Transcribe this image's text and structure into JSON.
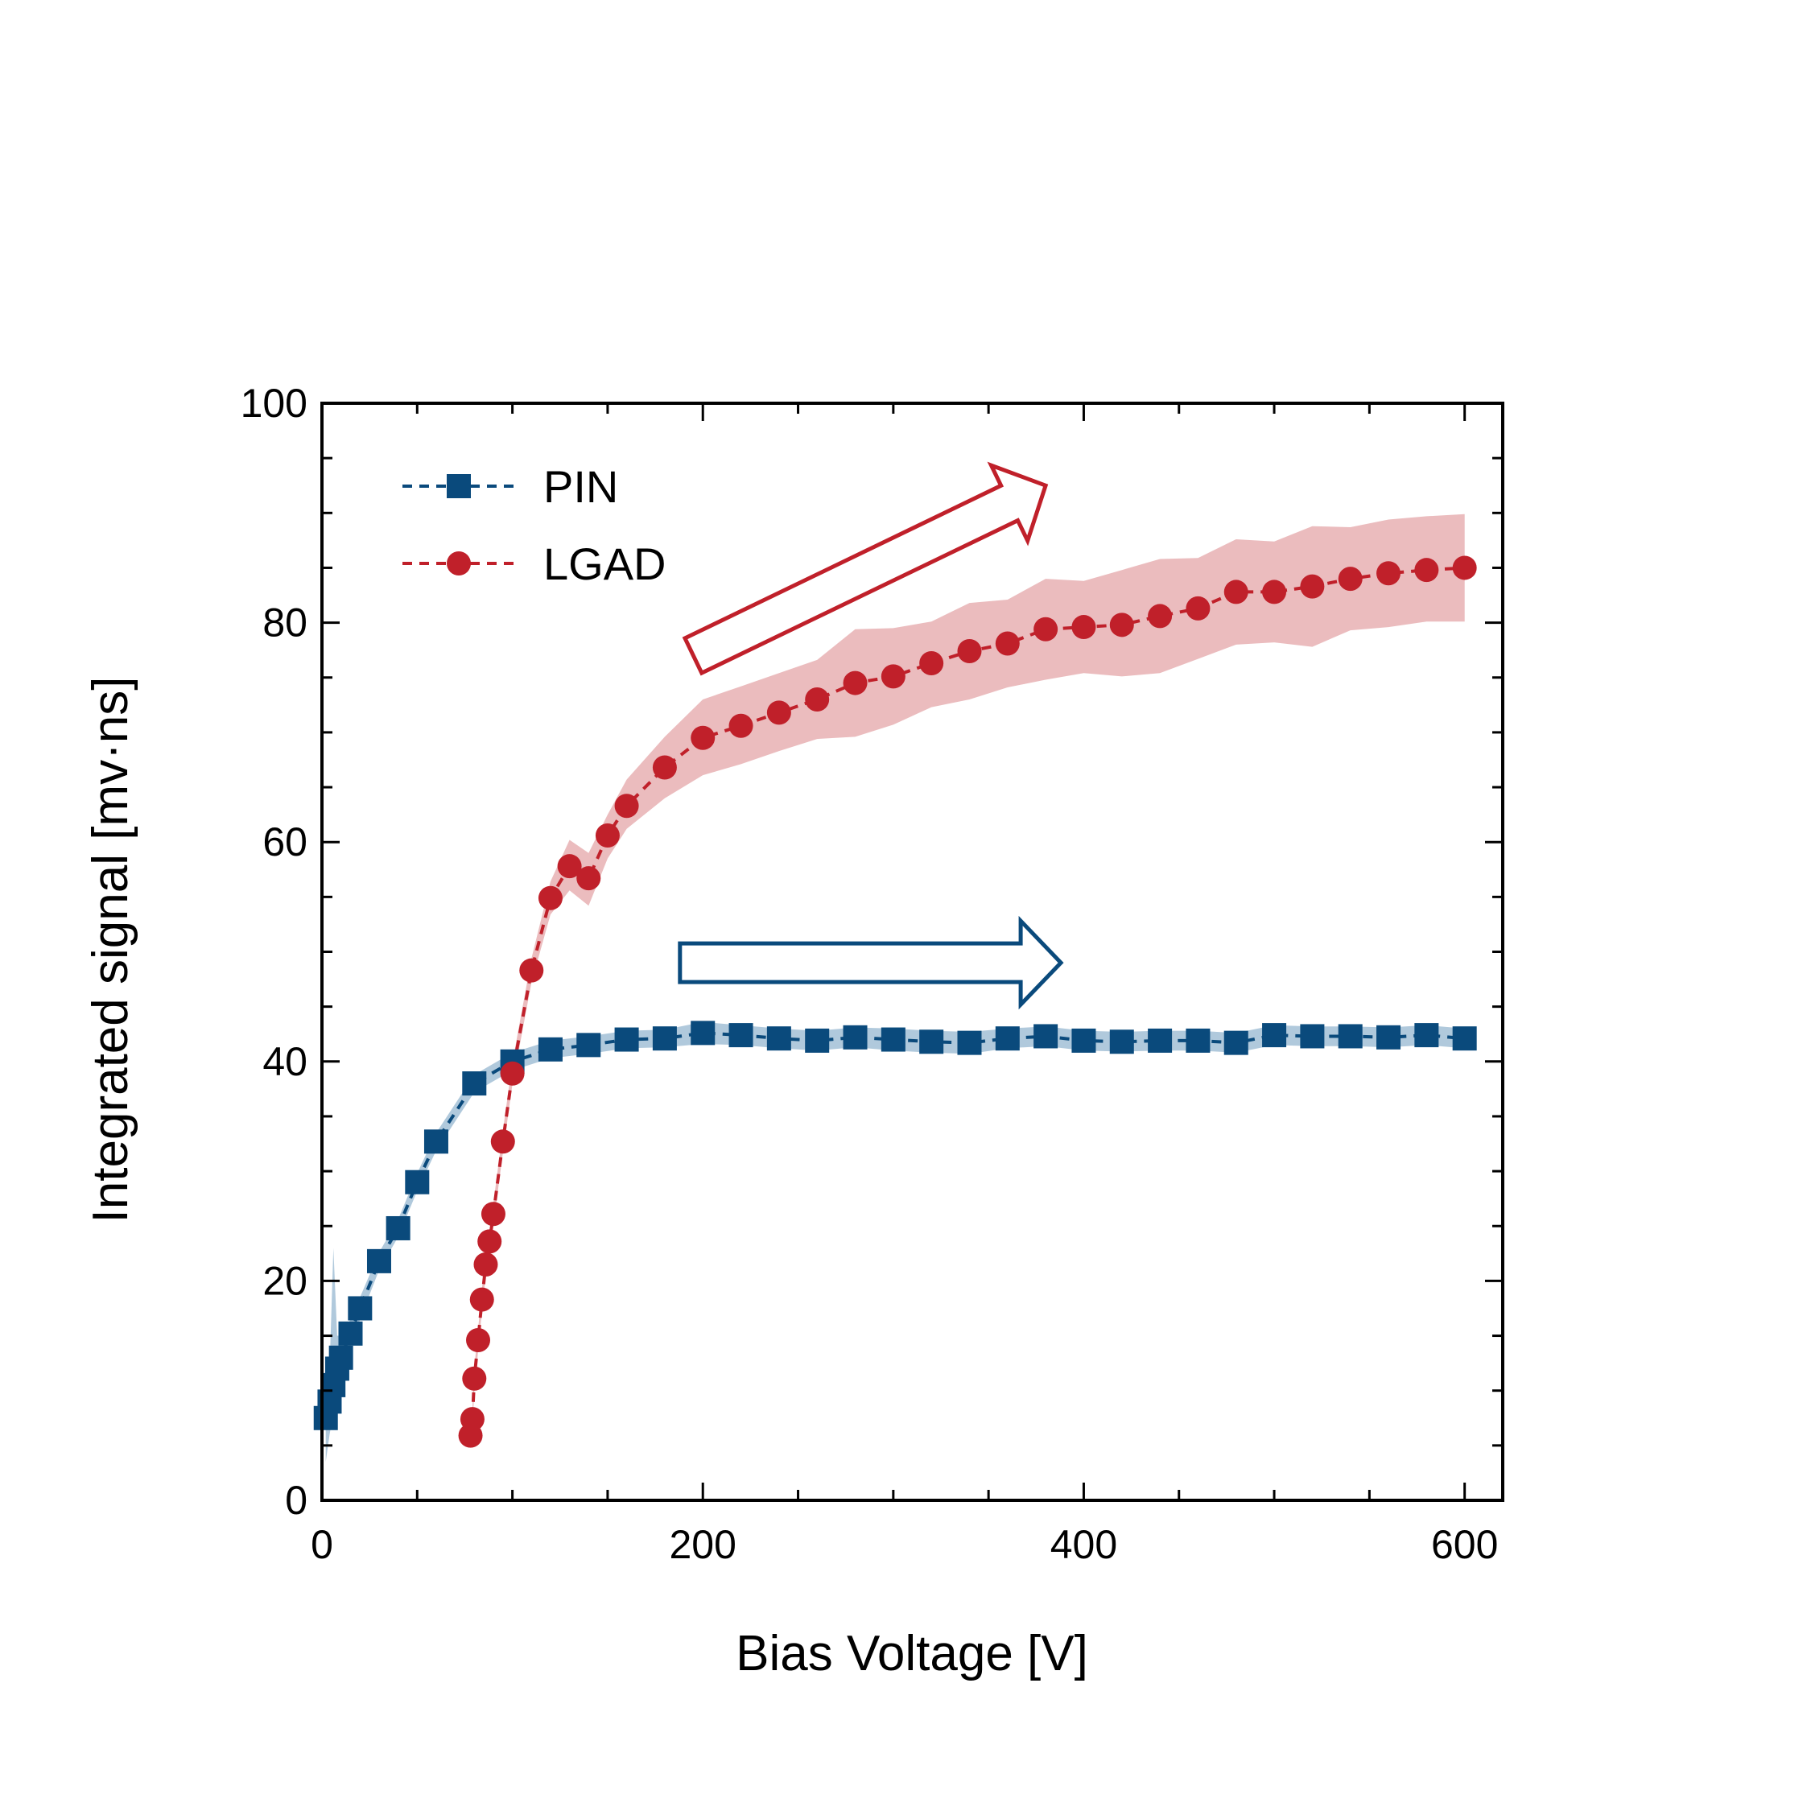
{
  "chart_data": {
    "type": "line",
    "xlabel": "Bias Voltage [V]",
    "ylabel": "Integrated signal [mv·ns]",
    "xlim": [
      0,
      620
    ],
    "ylim": [
      0,
      100
    ],
    "xticks": [
      0,
      200,
      400,
      600
    ],
    "yticks": [
      0,
      20,
      40,
      60,
      80,
      100
    ],
    "legend_position": "top-left",
    "grid": false,
    "series": [
      {
        "name": "PIN",
        "color": "#0a4a7c",
        "band_color": "#6f9cc0",
        "marker": "square",
        "points": [
          {
            "x": 2,
            "y": 7.5,
            "lo": 3.5,
            "hi": 11.5
          },
          {
            "x": 4,
            "y": 9,
            "lo": 6,
            "hi": 12
          },
          {
            "x": 6,
            "y": 10.5,
            "lo": 8,
            "hi": 23
          },
          {
            "x": 8,
            "y": 12,
            "lo": 9,
            "hi": 15
          },
          {
            "x": 10,
            "y": 13,
            "lo": 11,
            "hi": 15
          },
          {
            "x": 15,
            "y": 15.2,
            "lo": 14,
            "hi": 16.5
          },
          {
            "x": 20,
            "y": 17.5,
            "lo": 16.5,
            "hi": 18.5
          },
          {
            "x": 30,
            "y": 21.8,
            "lo": 21,
            "hi": 22.6
          },
          {
            "x": 40,
            "y": 24.8,
            "lo": 24,
            "hi": 25.6
          },
          {
            "x": 50,
            "y": 29,
            "lo": 28.2,
            "hi": 29.8
          },
          {
            "x": 60,
            "y": 32.7,
            "lo": 31.9,
            "hi": 33.5
          },
          {
            "x": 80,
            "y": 38,
            "lo": 37.2,
            "hi": 38.8
          },
          {
            "x": 100,
            "y": 40,
            "lo": 39.2,
            "hi": 40.8
          },
          {
            "x": 120,
            "y": 41.1,
            "lo": 40.3,
            "hi": 41.9
          },
          {
            "x": 140,
            "y": 41.5,
            "lo": 40.7,
            "hi": 42.3
          },
          {
            "x": 160,
            "y": 42,
            "lo": 41.2,
            "hi": 42.8
          },
          {
            "x": 180,
            "y": 42.1,
            "lo": 41.3,
            "hi": 42.9
          },
          {
            "x": 200,
            "y": 42.6,
            "lo": 41.6,
            "hi": 43.6
          },
          {
            "x": 220,
            "y": 42.4,
            "lo": 41.5,
            "hi": 43.3
          },
          {
            "x": 240,
            "y": 42.1,
            "lo": 41.2,
            "hi": 43
          },
          {
            "x": 260,
            "y": 41.9,
            "lo": 41,
            "hi": 42.8
          },
          {
            "x": 280,
            "y": 42.2,
            "lo": 41.3,
            "hi": 43.1
          },
          {
            "x": 300,
            "y": 42,
            "lo": 41,
            "hi": 43
          },
          {
            "x": 320,
            "y": 41.8,
            "lo": 40.8,
            "hi": 42.8
          },
          {
            "x": 340,
            "y": 41.7,
            "lo": 40.7,
            "hi": 42.7
          },
          {
            "x": 360,
            "y": 42.1,
            "lo": 41.2,
            "hi": 43
          },
          {
            "x": 380,
            "y": 42.3,
            "lo": 41.4,
            "hi": 43.2
          },
          {
            "x": 400,
            "y": 41.9,
            "lo": 41,
            "hi": 42.8
          },
          {
            "x": 420,
            "y": 41.8,
            "lo": 40.9,
            "hi": 42.7
          },
          {
            "x": 440,
            "y": 41.9,
            "lo": 41,
            "hi": 42.8
          },
          {
            "x": 460,
            "y": 41.9,
            "lo": 41,
            "hi": 42.8
          },
          {
            "x": 480,
            "y": 41.7,
            "lo": 40.8,
            "hi": 42.6
          },
          {
            "x": 500,
            "y": 42.4,
            "lo": 41.5,
            "hi": 43.3
          },
          {
            "x": 520,
            "y": 42.3,
            "lo": 41.4,
            "hi": 43.2
          },
          {
            "x": 540,
            "y": 42.3,
            "lo": 41.4,
            "hi": 43.2
          },
          {
            "x": 560,
            "y": 42.2,
            "lo": 41.3,
            "hi": 43.1
          },
          {
            "x": 580,
            "y": 42.4,
            "lo": 41.5,
            "hi": 43.3
          },
          {
            "x": 600,
            "y": 42.1,
            "lo": 41.2,
            "hi": 43
          }
        ]
      },
      {
        "name": "LGAD",
        "color": "#c0202a",
        "band_color": "#e8b0b3",
        "marker": "circle",
        "points": [
          {
            "x": 78,
            "y": 5.9,
            "lo": 4.8,
            "hi": 7
          },
          {
            "x": 79,
            "y": 7.4,
            "lo": 6.4,
            "hi": 8.4
          },
          {
            "x": 80,
            "y": 11.1,
            "lo": 10.1,
            "hi": 12.1
          },
          {
            "x": 82,
            "y": 14.6,
            "lo": 13.6,
            "hi": 15.6
          },
          {
            "x": 84,
            "y": 18.3,
            "lo": 17.3,
            "hi": 19.3
          },
          {
            "x": 86,
            "y": 21.5,
            "lo": 20.5,
            "hi": 22.5
          },
          {
            "x": 88,
            "y": 23.6,
            "lo": 22.6,
            "hi": 24.6
          },
          {
            "x": 90,
            "y": 26.1,
            "lo": 25.1,
            "hi": 27.1
          },
          {
            "x": 95,
            "y": 32.7,
            "lo": 31.7,
            "hi": 33.7
          },
          {
            "x": 100,
            "y": 38.9,
            "lo": 37.9,
            "hi": 39.9
          },
          {
            "x": 110,
            "y": 48.3,
            "lo": 47.2,
            "hi": 49.4
          },
          {
            "x": 120,
            "y": 54.9,
            "lo": 53.4,
            "hi": 56.4
          },
          {
            "x": 130,
            "y": 57.8,
            "lo": 55.6,
            "hi": 60.2
          },
          {
            "x": 140,
            "y": 56.7,
            "lo": 54.2,
            "hi": 59
          },
          {
            "x": 150,
            "y": 60.6,
            "lo": 58.5,
            "hi": 62.5
          },
          {
            "x": 160,
            "y": 63.3,
            "lo": 61.2,
            "hi": 65.7
          },
          {
            "x": 180,
            "y": 66.8,
            "lo": 64,
            "hi": 69.6
          },
          {
            "x": 200,
            "y": 69.5,
            "lo": 66.1,
            "hi": 73
          },
          {
            "x": 220,
            "y": 70.6,
            "lo": 67.1,
            "hi": 74.2
          },
          {
            "x": 240,
            "y": 71.8,
            "lo": 68.3,
            "hi": 75.4
          },
          {
            "x": 260,
            "y": 73,
            "lo": 69.4,
            "hi": 76.6
          },
          {
            "x": 280,
            "y": 74.5,
            "lo": 69.6,
            "hi": 79.4
          },
          {
            "x": 300,
            "y": 75.1,
            "lo": 70.7,
            "hi": 79.5
          },
          {
            "x": 320,
            "y": 76.3,
            "lo": 72.3,
            "hi": 80.1
          },
          {
            "x": 340,
            "y": 77.4,
            "lo": 73,
            "hi": 81.8
          },
          {
            "x": 360,
            "y": 78.1,
            "lo": 74.1,
            "hi": 82.1
          },
          {
            "x": 380,
            "y": 79.4,
            "lo": 74.8,
            "hi": 84
          },
          {
            "x": 400,
            "y": 79.6,
            "lo": 75.4,
            "hi": 83.8
          },
          {
            "x": 420,
            "y": 79.8,
            "lo": 75.1,
            "hi": 84.8
          },
          {
            "x": 440,
            "y": 80.6,
            "lo": 75.4,
            "hi": 85.8
          },
          {
            "x": 460,
            "y": 81.3,
            "lo": 76.7,
            "hi": 85.9
          },
          {
            "x": 480,
            "y": 82.8,
            "lo": 78,
            "hi": 87.6
          },
          {
            "x": 500,
            "y": 82.8,
            "lo": 78.2,
            "hi": 87.4
          },
          {
            "x": 520,
            "y": 83.3,
            "lo": 77.8,
            "hi": 88.8
          },
          {
            "x": 540,
            "y": 84,
            "lo": 79.3,
            "hi": 88.7
          },
          {
            "x": 560,
            "y": 84.5,
            "lo": 79.6,
            "hi": 89.4
          },
          {
            "x": 580,
            "y": 84.8,
            "lo": 80.1,
            "hi": 89.7
          },
          {
            "x": 600,
            "y": 85,
            "lo": 80.1,
            "hi": 89.9
          }
        ]
      }
    ],
    "annotations": [
      {
        "type": "hollow-arrow",
        "series": "LGAD",
        "color": "#c0202a",
        "from": [
          195,
          77
        ],
        "to": [
          380,
          92.5
        ]
      },
      {
        "type": "hollow-arrow",
        "series": "PIN",
        "color": "#0a4a7c",
        "from": [
          188,
          49
        ],
        "to": [
          388,
          49
        ]
      }
    ]
  }
}
